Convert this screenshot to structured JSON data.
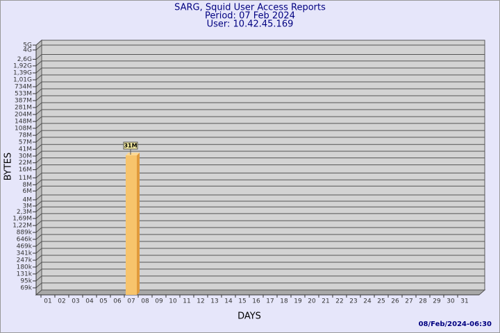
{
  "chart_data": {
    "type": "bar",
    "title": "SARG, Squid User Access Reports",
    "subtitle": "Period: 07 Feb 2024",
    "user": "User: 10.42.45.169",
    "x_label": "DAYS",
    "y_label": "BYTES",
    "footer": "08/Feb/2024-06:30",
    "categories": [
      "01",
      "02",
      "03",
      "04",
      "05",
      "06",
      "07",
      "08",
      "09",
      "10",
      "11",
      "12",
      "13",
      "14",
      "15",
      "16",
      "17",
      "18",
      "19",
      "20",
      "21",
      "22",
      "23",
      "24",
      "25",
      "26",
      "27",
      "28",
      "29",
      "30",
      "31"
    ],
    "values": [
      null,
      null,
      null,
      null,
      null,
      null,
      31000000,
      null,
      null,
      null,
      null,
      null,
      null,
      null,
      null,
      null,
      null,
      null,
      null,
      null,
      null,
      null,
      null,
      null,
      null,
      null,
      null,
      null,
      null,
      null,
      null
    ],
    "value_labels": [
      null,
      null,
      null,
      null,
      null,
      null,
      "31M",
      null,
      null,
      null,
      null,
      null,
      null,
      null,
      null,
      null,
      null,
      null,
      null,
      null,
      null,
      null,
      null,
      null,
      null,
      null,
      null,
      null,
      null,
      null,
      null
    ],
    "color": "#f7c46c",
    "log_scale": true,
    "grid": true,
    "ylim": [
      50000,
      5000000000
    ],
    "yticks": [
      {
        "value": 69000,
        "label": "69k"
      },
      {
        "value": 95000,
        "label": "95k"
      },
      {
        "value": 131000,
        "label": "131k"
      },
      {
        "value": 180000,
        "label": "180k"
      },
      {
        "value": 247000,
        "label": "247k"
      },
      {
        "value": 341000,
        "label": "341k"
      },
      {
        "value": 469000,
        "label": "469k"
      },
      {
        "value": 646000,
        "label": "646k"
      },
      {
        "value": 889000,
        "label": "889k"
      },
      {
        "value": 1220000,
        "label": "1,22M"
      },
      {
        "value": 1690000,
        "label": "1,69M"
      },
      {
        "value": 2300000,
        "label": "2,3M"
      },
      {
        "value": 3000000,
        "label": "3M"
      },
      {
        "value": 4000000,
        "label": "4M"
      },
      {
        "value": 6000000,
        "label": "6M"
      },
      {
        "value": 8000000,
        "label": "8M"
      },
      {
        "value": 11000000,
        "label": "11M"
      },
      {
        "value": 16000000,
        "label": "16M"
      },
      {
        "value": 22000000,
        "label": "22M"
      },
      {
        "value": 30000000,
        "label": "30M"
      },
      {
        "value": 41000000,
        "label": "41M"
      },
      {
        "value": 57000000,
        "label": "57M"
      },
      {
        "value": 78000000,
        "label": "78M"
      },
      {
        "value": 108000000,
        "label": "108M"
      },
      {
        "value": 148000000,
        "label": "148M"
      },
      {
        "value": 204000000,
        "label": "204M"
      },
      {
        "value": 281000000,
        "label": "281M"
      },
      {
        "value": 387000000,
        "label": "387M"
      },
      {
        "value": 533000000,
        "label": "533M"
      },
      {
        "value": 734000000,
        "label": "734M"
      },
      {
        "value": 1010000000,
        "label": "1,01G"
      },
      {
        "value": 1390000000,
        "label": "1,39G"
      },
      {
        "value": 1920000000,
        "label": "1,92G"
      },
      {
        "value": 2600000000,
        "label": "2,6G"
      },
      {
        "value": 4000000000,
        "label": "4G"
      },
      {
        "value": 5000000000,
        "label": "5G"
      }
    ]
  }
}
